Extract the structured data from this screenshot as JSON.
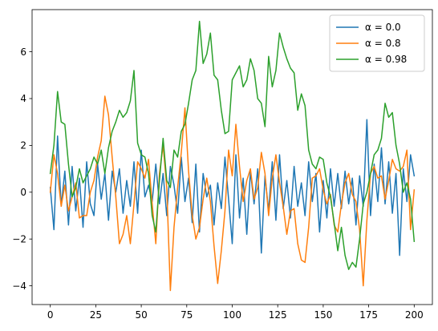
{
  "chart_data": {
    "type": "line",
    "title": "",
    "xlabel": "",
    "ylabel": "",
    "xlim": [
      -10,
      210
    ],
    "ylim": [
      -4.8,
      7.8
    ],
    "grid": false,
    "legend_placement": "top-right",
    "x_ticks": [
      0,
      25,
      50,
      75,
      100,
      125,
      150,
      175,
      200
    ],
    "x_tick_labels": [
      "0",
      "25",
      "50",
      "75",
      "100",
      "125",
      "150",
      "175",
      "200"
    ],
    "y_ticks": [
      -4,
      -2,
      0,
      2,
      4,
      6
    ],
    "y_tick_labels": [
      "−4",
      "−2",
      "0",
      "2",
      "4",
      "6"
    ],
    "series": [
      {
        "name": "α = 0.0",
        "color": "#1f77b4",
        "x": [
          0,
          2,
          4,
          6,
          8,
          10,
          12,
          14,
          16,
          18,
          20,
          22,
          24,
          26,
          28,
          30,
          32,
          34,
          36,
          38,
          40,
          42,
          44,
          46,
          48,
          50,
          52,
          54,
          56,
          58,
          60,
          62,
          64,
          66,
          68,
          70,
          72,
          74,
          76,
          78,
          80,
          82,
          84,
          86,
          88,
          90,
          92,
          94,
          96,
          98,
          100,
          102,
          104,
          106,
          108,
          110,
          112,
          114,
          116,
          118,
          120,
          122,
          124,
          126,
          128,
          130,
          132,
          134,
          136,
          138,
          140,
          142,
          144,
          146,
          148,
          150,
          152,
          154,
          156,
          158,
          160,
          162,
          164,
          166,
          168,
          170,
          172,
          174,
          176,
          178,
          180,
          182,
          184,
          186,
          188,
          190,
          192,
          194,
          196,
          198,
          200
        ],
        "values": [
          0.2,
          -1.6,
          2.4,
          -0.6,
          0.9,
          -1.4,
          1.1,
          -0.8,
          0.6,
          -1.5,
          1.3,
          -0.5,
          -1.0,
          1.2,
          -0.3,
          0.8,
          -1.2,
          0.9,
          0.0,
          1.0,
          -0.9,
          0.5,
          -0.6,
          1.3,
          -0.9,
          1.8,
          -0.2,
          0.3,
          -0.4,
          1.2,
          -0.5,
          0.8,
          -1.0,
          1.1,
          0.3,
          -0.9,
          1.5,
          -0.4,
          0.6,
          -1.3,
          1.2,
          -1.7,
          0.8,
          -0.2,
          0.3,
          -1.4,
          0.4,
          -0.7,
          1.5,
          -0.3,
          -2.2,
          1.6,
          -1.1,
          0.6,
          -1.8,
          0.9,
          -0.5,
          1.0,
          -2.6,
          0.7,
          -0.8,
          1.3,
          -1.2,
          1.6,
          -0.7,
          0.5,
          -1.1,
          1.1,
          -0.6,
          0.4,
          -1.0,
          1.3,
          -0.4,
          0.8,
          -1.7,
          0.5,
          -1.1,
          1.0,
          -0.6,
          0.8,
          -0.7,
          0.9,
          -0.5,
          0.6,
          -1.4,
          0.7,
          -0.6,
          3.1,
          -1.0,
          1.2,
          -0.4,
          1.9,
          -0.5,
          1.3,
          -0.9,
          0.8,
          -2.7,
          1.0,
          -0.4,
          1.6,
          0.7
        ]
      },
      {
        "name": "α = 0.8",
        "color": "#ff7f0e",
        "x": [
          0,
          2,
          4,
          6,
          8,
          10,
          12,
          14,
          16,
          18,
          20,
          22,
          24,
          26,
          28,
          30,
          32,
          34,
          36,
          38,
          40,
          42,
          44,
          46,
          48,
          50,
          52,
          54,
          56,
          58,
          60,
          62,
          64,
          66,
          68,
          70,
          72,
          74,
          76,
          78,
          80,
          82,
          84,
          86,
          88,
          90,
          92,
          94,
          96,
          98,
          100,
          102,
          104,
          106,
          108,
          110,
          112,
          114,
          116,
          118,
          120,
          122,
          124,
          126,
          128,
          130,
          132,
          134,
          136,
          138,
          140,
          142,
          144,
          146,
          148,
          150,
          152,
          154,
          156,
          158,
          160,
          162,
          164,
          166,
          168,
          170,
          172,
          174,
          176,
          178,
          180,
          182,
          184,
          186,
          188,
          190,
          192,
          194,
          196,
          198,
          200
        ],
        "values": [
          0.0,
          1.6,
          0.8,
          -0.6,
          0.3,
          -0.8,
          -0.2,
          0.4,
          -1.1,
          -1.0,
          -1.0,
          0.0,
          0.5,
          1.5,
          2.2,
          4.1,
          3.3,
          1.5,
          -0.2,
          -2.2,
          -1.8,
          -1.0,
          -2.2,
          -0.5,
          1.3,
          1.0,
          0.6,
          1.4,
          -0.5,
          -2.2,
          0.8,
          2.0,
          0.2,
          -4.2,
          -1.5,
          0.2,
          1.7,
          3.6,
          0.9,
          -1.0,
          -2.0,
          -1.5,
          -0.3,
          0.6,
          -0.4,
          -2.3,
          -3.9,
          -2.5,
          -0.8,
          1.8,
          0.7,
          2.9,
          1.1,
          -0.4,
          0.5,
          1.0,
          -0.3,
          0.2,
          1.7,
          0.8,
          -1.0,
          0.6,
          1.6,
          0.4,
          -0.6,
          -1.8,
          -0.8,
          -0.7,
          -2.2,
          -2.9,
          -3.0,
          -1.5,
          0.6,
          0.7,
          1.0,
          0.1,
          -0.5,
          -0.1,
          -1.4,
          -1.7,
          -0.5,
          0.4,
          0.8,
          -0.1,
          -0.4,
          -1.6,
          -4.0,
          -1.2,
          0.8,
          1.1,
          0.6,
          0.7,
          -0.3,
          0.5,
          1.4,
          1.0,
          0.9,
          1.1,
          1.8,
          -1.6,
          0.1
        ]
      },
      {
        "name": "α = 0.98",
        "color": "#2ca02c",
        "x": [
          0,
          2,
          4,
          6,
          8,
          10,
          12,
          14,
          16,
          18,
          20,
          22,
          24,
          26,
          28,
          30,
          32,
          34,
          36,
          38,
          40,
          42,
          44,
          46,
          48,
          50,
          52,
          54,
          56,
          58,
          60,
          62,
          64,
          66,
          68,
          70,
          72,
          74,
          76,
          78,
          80,
          82,
          84,
          86,
          88,
          90,
          92,
          94,
          96,
          98,
          100,
          102,
          104,
          106,
          108,
          110,
          112,
          114,
          116,
          118,
          120,
          122,
          124,
          126,
          128,
          130,
          132,
          134,
          136,
          138,
          140,
          142,
          144,
          146,
          148,
          150,
          152,
          154,
          156,
          158,
          160,
          162,
          164,
          166,
          168,
          170,
          172,
          174,
          176,
          178,
          180,
          182,
          184,
          186,
          188,
          190,
          192,
          194,
          196,
          198,
          200
        ],
        "values": [
          0.8,
          2.0,
          4.3,
          3.0,
          2.9,
          1.2,
          -0.2,
          0.2,
          1.0,
          0.4,
          0.7,
          1.0,
          1.5,
          1.2,
          1.8,
          0.8,
          1.9,
          2.6,
          3.0,
          3.5,
          3.2,
          3.4,
          3.9,
          5.2,
          2.1,
          1.6,
          1.5,
          0.8,
          -1.0,
          -1.7,
          0.5,
          2.3,
          0.5,
          0.2,
          1.8,
          1.5,
          2.6,
          2.9,
          3.8,
          4.8,
          5.2,
          7.3,
          5.5,
          5.9,
          6.8,
          5.0,
          4.8,
          3.5,
          2.5,
          2.6,
          4.8,
          5.1,
          5.4,
          4.5,
          4.8,
          5.7,
          5.2,
          4.0,
          3.8,
          2.8,
          5.8,
          4.5,
          5.2,
          6.8,
          6.2,
          5.7,
          5.3,
          5.1,
          3.5,
          4.2,
          3.7,
          1.8,
          1.2,
          1.0,
          1.5,
          1.4,
          0.4,
          -0.2,
          -1.3,
          -2.5,
          -1.5,
          -2.7,
          -3.3,
          -3.0,
          -3.2,
          -2.0,
          -0.5,
          0.0,
          0.8,
          1.6,
          1.8,
          2.3,
          3.8,
          3.2,
          3.4,
          2.0,
          1.2,
          0.0,
          0.4,
          -0.3,
          -2.1
        ]
      }
    ]
  }
}
